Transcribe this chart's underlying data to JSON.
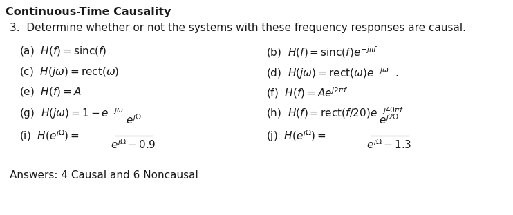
{
  "title": "Continuous-Time Causality",
  "problem": "3.  Determine whether or not the systems with these frequency responses are causal.",
  "left_items": [
    "(a)  $H(f) = \\mathrm{sinc}(f)$",
    "(c)  $H(j\\omega) = \\mathrm{rect}(\\omega)$",
    "(e)  $H(f) = A$",
    "(g)  $H(j\\omega) = 1 - e^{-j\\omega}$"
  ],
  "right_items": [
    "(b)  $H(f) = \\mathrm{sinc}(f)e^{-j\\pi f}$",
    "(d)  $H(j\\omega) = \\mathrm{rect}(\\omega)e^{-j\\omega}$  .",
    "(f)  $H(f) = Ae^{j2\\pi f}$",
    "(h)  $H(f) = \\mathrm{rect}(f/20)e^{-j40\\pi f}$"
  ],
  "frac_i_label": "(i)  $H(e^{j\\Omega}) =$",
  "frac_i_num": "$e^{j\\Omega}$",
  "frac_i_den": "$e^{j\\Omega} - 0.9$",
  "frac_j_label": "(j)  $H(e^{j\\Omega}) =$",
  "frac_j_num": "$e^{j2\\Omega}$",
  "frac_j_den": "$e^{j\\Omega} - 1.3$",
  "answer": "Answers: 4 Causal and 6 Noncausal",
  "bg_color": "#ffffff",
  "text_color": "#1a1a1a",
  "title_fontsize": 11.5,
  "body_fontsize": 11,
  "answer_fontsize": 11
}
